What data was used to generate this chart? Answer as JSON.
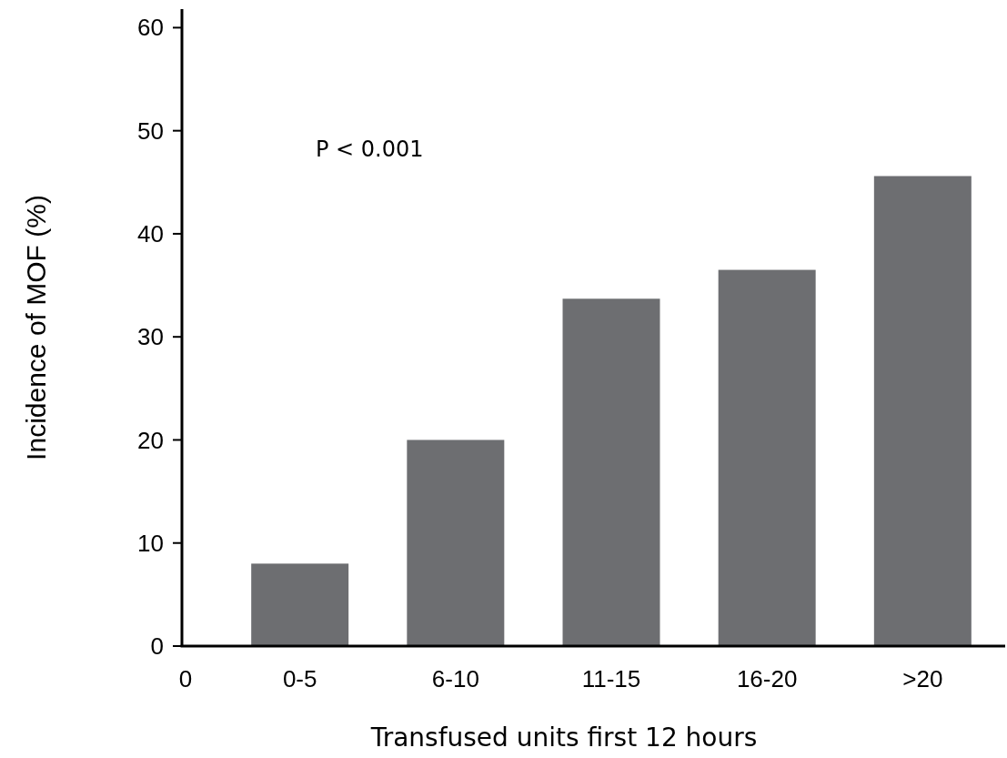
{
  "chart_data": {
    "type": "bar",
    "xlabel": "Transfused units first 12 hours",
    "ylabel": "Incidence of MOF  (%)",
    "categories": [
      "0-5",
      "6-10",
      "11-15",
      "16-20",
      ">20"
    ],
    "values": [
      8,
      20,
      33.7,
      36.5,
      45.6
    ],
    "color": "#6d6e71",
    "ylim": [
      0,
      61.8
    ],
    "yticks": [
      0,
      10,
      20,
      30,
      40,
      50,
      60
    ],
    "grid": false,
    "annotations": [
      "P < 0.001",
      "0"
    ]
  }
}
